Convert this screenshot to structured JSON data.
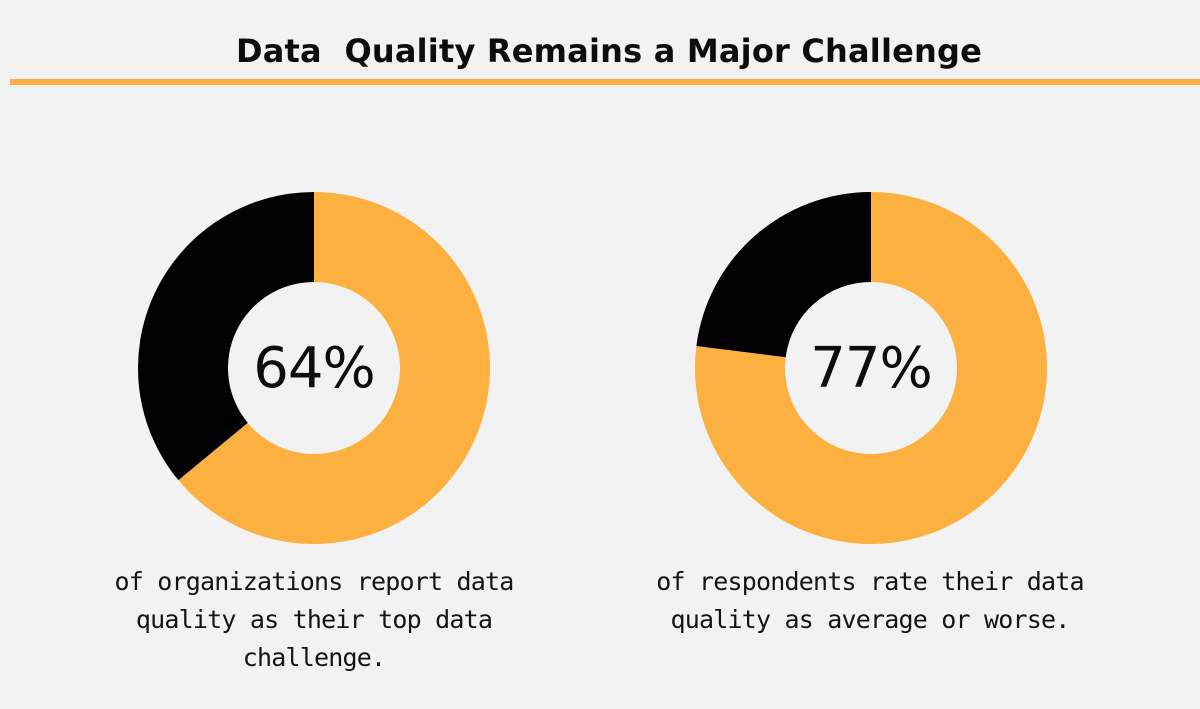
{
  "title": "Data  Quality Remains a Major Challenge",
  "colors": {
    "background": "#f2f2f2",
    "accent": "#fbb040",
    "dark": "#000000"
  },
  "chart_data": [
    {
      "type": "pie",
      "title": "",
      "center_label": "64%",
      "slices": [
        {
          "value": 64,
          "color": "#fbb040"
        },
        {
          "value": 36,
          "color": "#000000"
        }
      ],
      "caption": "of organizations report data quality as their top data challenge."
    },
    {
      "type": "pie",
      "title": "",
      "center_label": "77%",
      "slices": [
        {
          "value": 77,
          "color": "#fbb040"
        },
        {
          "value": 23,
          "color": "#000000"
        }
      ],
      "caption": "of respondents rate their data quality as average or worse."
    }
  ]
}
